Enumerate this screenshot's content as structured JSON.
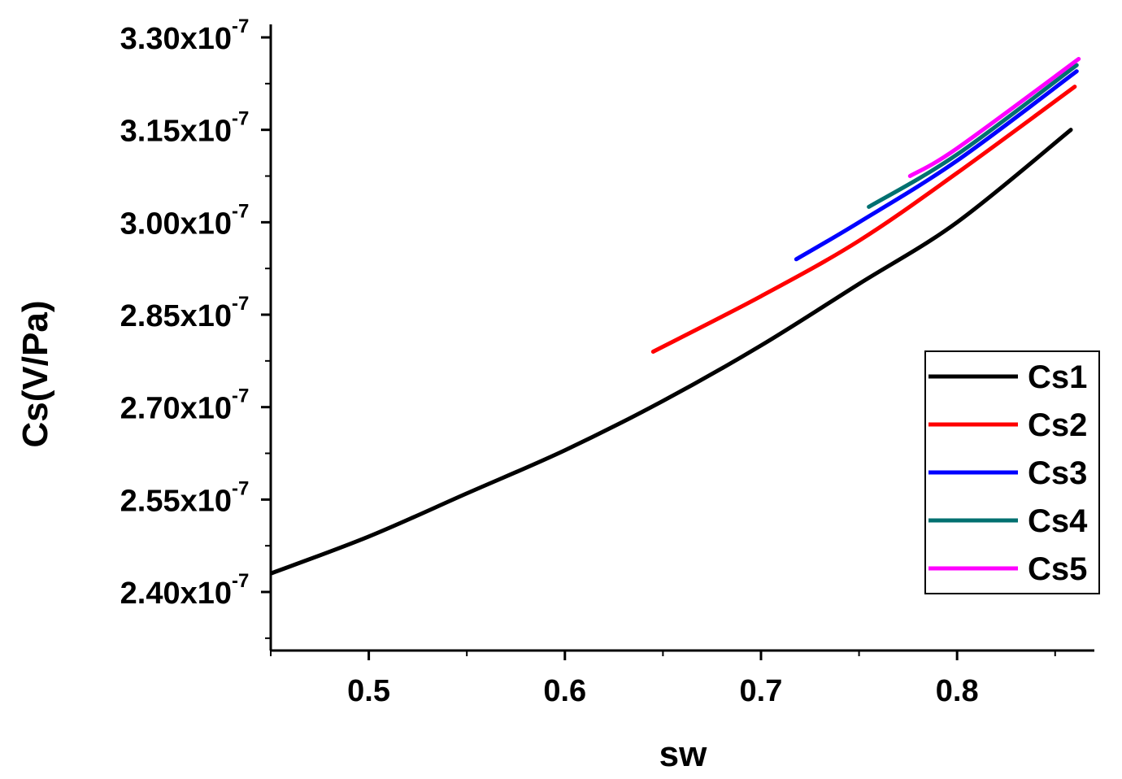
{
  "chart_data": {
    "type": "line",
    "title": "",
    "xlabel": "sw",
    "ylabel": "Cs(V/Pa)",
    "xlim": [
      0.45,
      0.87
    ],
    "ylim": [
      2.305e-07,
      3.3e-07
    ],
    "x_ticks": [
      {
        "value": 0.5,
        "label": "0.5"
      },
      {
        "value": 0.6,
        "label": "0.6"
      },
      {
        "value": 0.7,
        "label": "0.7"
      },
      {
        "value": 0.8,
        "label": "0.8"
      }
    ],
    "y_ticks": [
      {
        "value": 2.4e-07,
        "mantissa": "2.40x10",
        "exponent": "-7"
      },
      {
        "value": 2.55e-07,
        "mantissa": "2.55x10",
        "exponent": "-7"
      },
      {
        "value": 2.7e-07,
        "mantissa": "2.70x10",
        "exponent": "-7"
      },
      {
        "value": 2.85e-07,
        "mantissa": "2.85x10",
        "exponent": "-7"
      },
      {
        "value": 3e-07,
        "mantissa": "3.00x10",
        "exponent": "-7"
      },
      {
        "value": 3.15e-07,
        "mantissa": "3.15x10",
        "exponent": "-7"
      },
      {
        "value": 3.3e-07,
        "mantissa": "3.30x10",
        "exponent": "-7"
      }
    ],
    "grid": false,
    "legend_position": "bottom-right",
    "series": [
      {
        "name": "Cs1",
        "color": "#000000",
        "x": [
          0.45,
          0.5,
          0.55,
          0.6,
          0.65,
          0.7,
          0.75,
          0.8,
          0.858
        ],
        "y": [
          2.43e-07,
          2.49e-07,
          2.56e-07,
          2.63e-07,
          2.71e-07,
          2.8e-07,
          2.9e-07,
          3e-07,
          3.15e-07
        ]
      },
      {
        "name": "Cs2",
        "color": "#ff0000",
        "x": [
          0.645,
          0.7,
          0.75,
          0.8,
          0.86
        ],
        "y": [
          2.79e-07,
          2.88e-07,
          2.97e-07,
          3.08e-07,
          3.22e-07
        ]
      },
      {
        "name": "Cs3",
        "color": "#0000ff",
        "x": [
          0.718,
          0.75,
          0.8,
          0.861
        ],
        "y": [
          2.94e-07,
          3e-07,
          3.1e-07,
          3.245e-07
        ]
      },
      {
        "name": "Cs4",
        "color": "#007070",
        "x": [
          0.755,
          0.8,
          0.861
        ],
        "y": [
          3.025e-07,
          3.11e-07,
          3.255e-07
        ]
      },
      {
        "name": "Cs5",
        "color": "#ff00ff",
        "x": [
          0.776,
          0.8,
          0.862
        ],
        "y": [
          3.075e-07,
          3.12e-07,
          3.265e-07
        ]
      }
    ]
  }
}
